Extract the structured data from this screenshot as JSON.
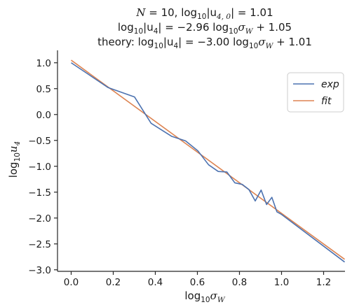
{
  "chart_data": {
    "type": "line",
    "title_lines": [
      [
        "N",
        " = 10, log",
        "10",
        "|u",
        "4, 0",
        "| = 1.01"
      ],
      [
        "log",
        "10",
        "|u",
        "4",
        "| = −2.96 log",
        "10",
        "σ",
        "W",
        " + 1.05"
      ],
      [
        "theory: log",
        "10",
        "|u",
        "4",
        "| = −3.00 log",
        "10",
        "σ",
        "W",
        " + 1.01"
      ]
    ],
    "xlabel": [
      "log",
      "10",
      "σ",
      "W"
    ],
    "ylabel": [
      "log",
      "10",
      "u",
      "4"
    ],
    "xlim": [
      -0.065,
      1.335
    ],
    "ylim": [
      -3.03,
      1.24
    ],
    "xticks": [
      0.0,
      0.2,
      0.4,
      0.6,
      0.8,
      1.0,
      1.2
    ],
    "xtick_labels": [
      "0.0",
      "0.2",
      "0.4",
      "0.6",
      "0.8",
      "1.0",
      "1.2"
    ],
    "yticks": [
      1.0,
      0.5,
      0.0,
      -0.5,
      -1.0,
      -1.5,
      -2.0,
      -2.5,
      -3.0
    ],
    "ytick_labels": [
      "1.0",
      "0.5",
      "0.0",
      "−0.5",
      "−1.0",
      "−1.5",
      "−2.0",
      "−2.5",
      "−3.0"
    ],
    "legend_position": "top-right",
    "series": [
      {
        "name": "exp",
        "color": "#4c72b0",
        "x": [
          0.0,
          0.176,
          0.301,
          0.38,
          0.477,
          0.544,
          0.602,
          0.653,
          0.699,
          0.74,
          0.778,
          0.813,
          0.845,
          0.875,
          0.903,
          0.929,
          0.954,
          0.978,
          1.0,
          1.3
        ],
        "y": [
          1.0,
          0.52,
          0.34,
          -0.17,
          -0.42,
          -0.51,
          -0.7,
          -0.97,
          -1.1,
          -1.11,
          -1.32,
          -1.35,
          -1.45,
          -1.67,
          -1.46,
          -1.74,
          -1.6,
          -1.88,
          -1.93,
          -2.85
        ]
      },
      {
        "name": "fit",
        "color": "#dd8452",
        "x": [
          0.0,
          1.3
        ],
        "y": [
          1.05,
          -2.798
        ]
      }
    ]
  }
}
